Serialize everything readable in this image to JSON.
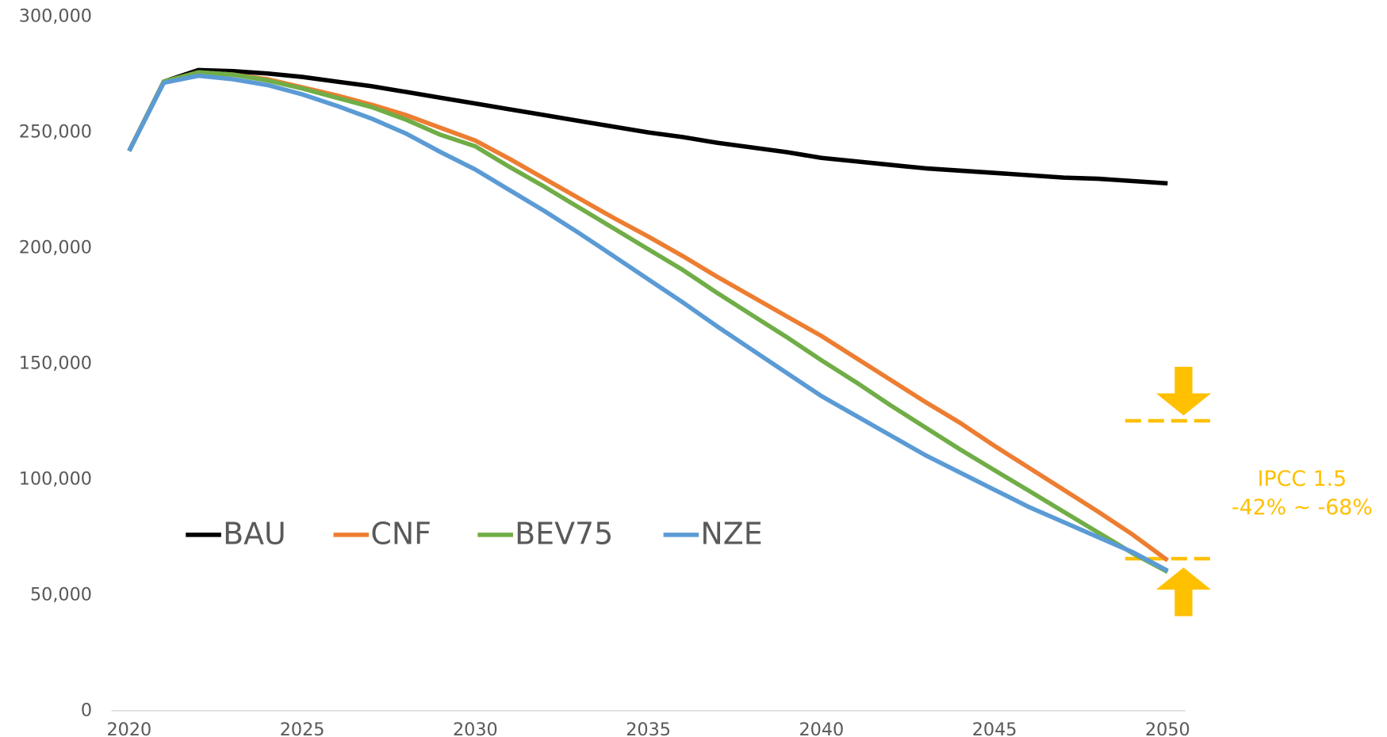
{
  "chart_data": {
    "type": "line",
    "x": [
      2020,
      2021,
      2022,
      2023,
      2024,
      2025,
      2026,
      2027,
      2028,
      2029,
      2030,
      2031,
      2032,
      2033,
      2034,
      2035,
      2036,
      2037,
      2038,
      2039,
      2040,
      2041,
      2042,
      2043,
      2044,
      2045,
      2046,
      2047,
      2048,
      2049,
      2050
    ],
    "series": [
      {
        "name": "BAU",
        "color": "#000000",
        "values": [
          242000,
          272000,
          277000,
          276500,
          275500,
          274000,
          272000,
          270000,
          267500,
          265000,
          262500,
          260000,
          257500,
          255000,
          252500,
          250000,
          248000,
          245500,
          243500,
          241500,
          239000,
          237500,
          236000,
          234500,
          233500,
          232500,
          231500,
          230500,
          230000,
          229000,
          228000
        ]
      },
      {
        "name": "CNF",
        "color": "#ED7D31",
        "values": [
          242000,
          272000,
          276000,
          275000,
          273000,
          269500,
          266000,
          262000,
          257500,
          252000,
          246500,
          238500,
          230000,
          221500,
          213000,
          205000,
          196500,
          187500,
          179000,
          170500,
          162000,
          152500,
          143000,
          133500,
          124500,
          114500,
          105000,
          95500,
          86000,
          76000,
          65000
        ]
      },
      {
        "name": "BEV75",
        "color": "#70AD47",
        "values": [
          242000,
          272000,
          276000,
          275000,
          272500,
          269000,
          265000,
          261000,
          255500,
          249000,
          244000,
          235000,
          226500,
          217500,
          208500,
          199500,
          190500,
          180500,
          171000,
          161500,
          151500,
          142000,
          132000,
          122500,
          113000,
          104000,
          95000,
          86000,
          77000,
          68000,
          60000
        ]
      },
      {
        "name": "NZE",
        "color": "#5B9BD5",
        "values": [
          242000,
          271500,
          274500,
          273000,
          270500,
          266500,
          261500,
          256000,
          249500,
          241500,
          234000,
          225000,
          216000,
          206500,
          196500,
          186500,
          176500,
          166000,
          156000,
          146000,
          136000,
          127500,
          119000,
          110500,
          103000,
          95500,
          88000,
          81500,
          75000,
          68500,
          60500
        ]
      }
    ],
    "xlim": [
      2020,
      2050
    ],
    "xticks": [
      2020,
      2025,
      2030,
      2035,
      2040,
      2045,
      2050
    ],
    "ylim": [
      0,
      300000
    ],
    "yticks": [
      0,
      {
        "value": 50000,
        "label": "50,000"
      },
      {
        "value": 100000,
        "label": "100,000"
      },
      {
        "value": 150000,
        "label": "150,000"
      },
      {
        "value": 200000,
        "label": "200,000"
      },
      {
        "value": 250000,
        "label": "250,000"
      },
      {
        "value": 300000,
        "label": "300,000"
      }
    ],
    "annotations": [
      "IPCC 1.5",
      "-42% ~ -68%"
    ],
    "annotation_color": "#FFC000"
  }
}
